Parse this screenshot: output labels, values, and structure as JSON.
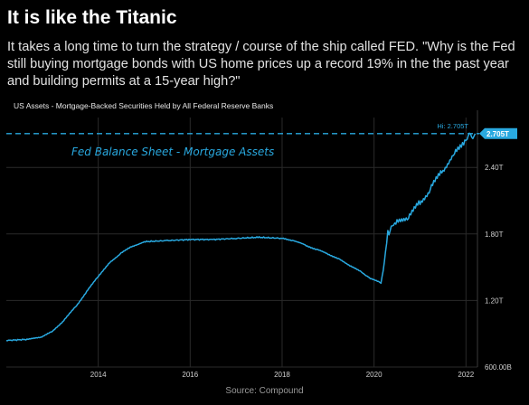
{
  "post": {
    "headline": "It is like the Titanic",
    "body": "It takes a long time to turn the strategy / course of the ship called FED. \"Why is the Fed still buying mortgage bonds with US home prices up a record 19% in the the past year and building permits at a 15-year high?\"",
    "source": "Source: Compound"
  },
  "chart_data": {
    "type": "line",
    "title": "US Assets - Mortgage-Backed Securities Held by All Federal Reserve Banks",
    "annotation": "Fed Balance Sheet - Mortgage Assets",
    "ylabel": "",
    "xlabel": "",
    "ylim": [
      0.6,
      2.85
    ],
    "xlim": [
      2012.0,
      2022.25
    ],
    "x_ticks": [
      {
        "x": 2014,
        "label": "2014"
      },
      {
        "x": 2016,
        "label": "2016"
      },
      {
        "x": 2018,
        "label": "2018"
      },
      {
        "x": 2020,
        "label": "2020"
      },
      {
        "x": 2022,
        "label": "2022"
      }
    ],
    "y_ticks": [
      {
        "y": 2.4,
        "label": "2.40T"
      },
      {
        "y": 1.8,
        "label": "1.80T"
      },
      {
        "y": 1.2,
        "label": "1.20T"
      },
      {
        "y": 0.6,
        "label": "600.00B"
      }
    ],
    "hi_line": {
      "value": 2.705,
      "label": "Hi: 2.705T",
      "badge": "2.705T"
    },
    "grid": true,
    "colors": {
      "line": "#29a9e0",
      "grid": "#2a2a2a",
      "axis_text": "#cfcfcf",
      "annotation": "#29a9e0",
      "badge_bg": "#29a9e0"
    },
    "series": [
      {
        "points": [
          [
            2012.0,
            0.84
          ],
          [
            2012.5,
            0.85
          ],
          [
            2012.75,
            0.87
          ],
          [
            2013.0,
            0.92
          ],
          [
            2013.25,
            1.02
          ],
          [
            2013.5,
            1.14
          ],
          [
            2013.75,
            1.28
          ],
          [
            2014.0,
            1.42
          ],
          [
            2014.25,
            1.54
          ],
          [
            2014.5,
            1.63
          ],
          [
            2014.75,
            1.69
          ],
          [
            2015.0,
            1.73
          ],
          [
            2015.5,
            1.74
          ],
          [
            2016.0,
            1.75
          ],
          [
            2016.5,
            1.75
          ],
          [
            2017.0,
            1.76
          ],
          [
            2017.5,
            1.77
          ],
          [
            2018.0,
            1.76
          ],
          [
            2018.25,
            1.74
          ],
          [
            2018.5,
            1.7
          ],
          [
            2018.75,
            1.66
          ],
          [
            2019.0,
            1.62
          ],
          [
            2019.25,
            1.57
          ],
          [
            2019.5,
            1.51
          ],
          [
            2019.75,
            1.45
          ],
          [
            2019.9,
            1.4
          ],
          [
            2020.15,
            1.36
          ],
          [
            2020.2,
            1.47
          ],
          [
            2020.3,
            1.8
          ],
          [
            2020.4,
            1.87
          ],
          [
            2020.5,
            1.9
          ],
          [
            2020.75,
            1.96
          ],
          [
            2021.0,
            2.08
          ],
          [
            2021.25,
            2.22
          ],
          [
            2021.5,
            2.38
          ],
          [
            2021.75,
            2.52
          ],
          [
            2022.0,
            2.66
          ],
          [
            2022.2,
            2.705
          ]
        ]
      }
    ]
  }
}
